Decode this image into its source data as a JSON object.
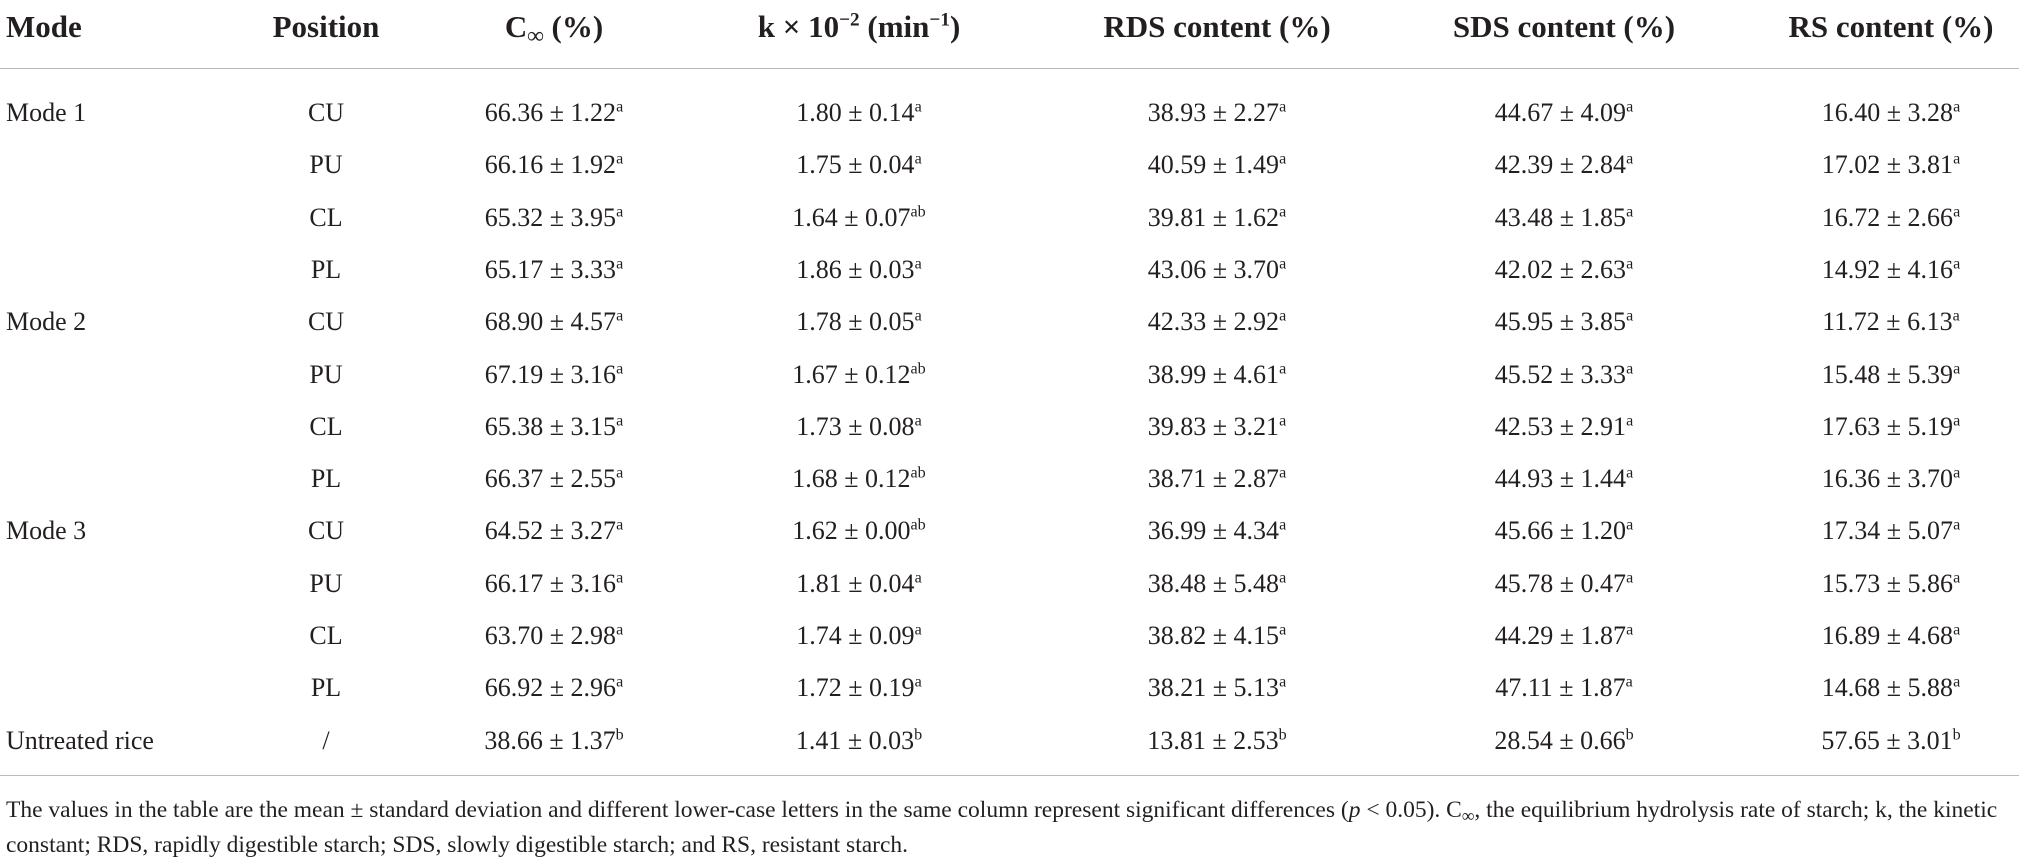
{
  "table": {
    "header": [
      [
        {
          "text": "Mode",
          "style": "normal"
        }
      ],
      [
        {
          "text": "Position",
          "style": "normal"
        }
      ],
      [
        {
          "text": "C",
          "style": "normal"
        },
        {
          "text": "∞",
          "style": "sub"
        },
        {
          "text": " (%)",
          "style": "normal"
        }
      ],
      [
        {
          "text": "k × 10",
          "style": "normal"
        },
        {
          "text": "−2",
          "style": "sup"
        },
        {
          "text": " (min",
          "style": "normal"
        },
        {
          "text": "−1",
          "style": "sup"
        },
        {
          "text": ")",
          "style": "normal"
        }
      ],
      [
        {
          "text": "RDS content (%)",
          "style": "normal"
        }
      ],
      [
        {
          "text": "SDS content (%)",
          "style": "normal"
        }
      ],
      [
        {
          "text": "RS content (%)",
          "style": "normal"
        }
      ]
    ],
    "rows": [
      [
        "Mode 1",
        "CU",
        {
          "value": "66.36 ± 1.22",
          "sup": "a"
        },
        {
          "value": "1.80 ± 0.14",
          "sup": "a"
        },
        {
          "value": "38.93 ± 2.27",
          "sup": "a"
        },
        {
          "value": "44.67 ± 4.09",
          "sup": "a"
        },
        {
          "value": "16.40 ± 3.28",
          "sup": "a"
        }
      ],
      [
        null,
        "PU",
        {
          "value": "66.16 ± 1.92",
          "sup": "a"
        },
        {
          "value": "1.75 ± 0.04",
          "sup": "a"
        },
        {
          "value": "40.59 ± 1.49",
          "sup": "a"
        },
        {
          "value": "42.39 ± 2.84",
          "sup": "a"
        },
        {
          "value": "17.02 ± 3.81",
          "sup": "a"
        }
      ],
      [
        null,
        "CL",
        {
          "value": "65.32 ± 3.95",
          "sup": "a"
        },
        {
          "value": "1.64 ± 0.07",
          "sup": "ab"
        },
        {
          "value": "39.81 ± 1.62",
          "sup": "a"
        },
        {
          "value": "43.48 ± 1.85",
          "sup": "a"
        },
        {
          "value": "16.72 ± 2.66",
          "sup": "a"
        }
      ],
      [
        null,
        "PL",
        {
          "value": "65.17 ± 3.33",
          "sup": "a"
        },
        {
          "value": "1.86 ± 0.03",
          "sup": "a"
        },
        {
          "value": "43.06 ± 3.70",
          "sup": "a"
        },
        {
          "value": "42.02 ± 2.63",
          "sup": "a"
        },
        {
          "value": "14.92 ± 4.16",
          "sup": "a"
        }
      ],
      [
        "Mode 2",
        "CU",
        {
          "value": "68.90 ± 4.57",
          "sup": "a"
        },
        {
          "value": "1.78 ± 0.05",
          "sup": "a"
        },
        {
          "value": "42.33 ± 2.92",
          "sup": "a"
        },
        {
          "value": "45.95 ± 3.85",
          "sup": "a"
        },
        {
          "value": "11.72 ± 6.13",
          "sup": "a"
        }
      ],
      [
        null,
        "PU",
        {
          "value": "67.19 ± 3.16",
          "sup": "a"
        },
        {
          "value": "1.67 ± 0.12",
          "sup": "ab"
        },
        {
          "value": "38.99 ± 4.61",
          "sup": "a"
        },
        {
          "value": "45.52 ± 3.33",
          "sup": "a"
        },
        {
          "value": "15.48 ± 5.39",
          "sup": "a"
        }
      ],
      [
        null,
        "CL",
        {
          "value": "65.38 ± 3.15",
          "sup": "a"
        },
        {
          "value": "1.73 ± 0.08",
          "sup": "a"
        },
        {
          "value": "39.83 ± 3.21",
          "sup": "a"
        },
        {
          "value": "42.53 ± 2.91",
          "sup": "a"
        },
        {
          "value": "17.63 ± 5.19",
          "sup": "a"
        }
      ],
      [
        null,
        "PL",
        {
          "value": "66.37 ± 2.55",
          "sup": "a"
        },
        {
          "value": "1.68 ± 0.12",
          "sup": "ab"
        },
        {
          "value": "38.71 ± 2.87",
          "sup": "a"
        },
        {
          "value": "44.93 ± 1.44",
          "sup": "a"
        },
        {
          "value": "16.36 ± 3.70",
          "sup": "a"
        }
      ],
      [
        "Mode 3",
        "CU",
        {
          "value": "64.52 ± 3.27",
          "sup": "a"
        },
        {
          "value": "1.62 ± 0.00",
          "sup": "ab"
        },
        {
          "value": "36.99 ± 4.34",
          "sup": "a"
        },
        {
          "value": "45.66 ± 1.20",
          "sup": "a"
        },
        {
          "value": "17.34 ± 5.07",
          "sup": "a"
        }
      ],
      [
        null,
        "PU",
        {
          "value": "66.17 ± 3.16",
          "sup": "a"
        },
        {
          "value": "1.81 ± 0.04",
          "sup": "a"
        },
        {
          "value": "38.48 ± 5.48",
          "sup": "a"
        },
        {
          "value": "45.78 ± 0.47",
          "sup": "a"
        },
        {
          "value": "15.73 ± 5.86",
          "sup": "a"
        }
      ],
      [
        null,
        "CL",
        {
          "value": "63.70 ± 2.98",
          "sup": "a"
        },
        {
          "value": "1.74 ± 0.09",
          "sup": "a"
        },
        {
          "value": "38.82 ± 4.15",
          "sup": "a"
        },
        {
          "value": "44.29 ± 1.87",
          "sup": "a"
        },
        {
          "value": "16.89 ± 4.68",
          "sup": "a"
        }
      ],
      [
        null,
        "PL",
        {
          "value": "66.92 ± 2.96",
          "sup": "a"
        },
        {
          "value": "1.72 ± 0.19",
          "sup": "a"
        },
        {
          "value": "38.21 ± 5.13",
          "sup": "a"
        },
        {
          "value": "47.11 ± 1.87",
          "sup": "a"
        },
        {
          "value": "14.68 ± 5.88",
          "sup": "a"
        }
      ],
      [
        "Untreated rice",
        "/",
        {
          "value": "38.66 ± 1.37",
          "sup": "b"
        },
        {
          "value": "1.41 ± 0.03",
          "sup": "b"
        },
        {
          "value": "13.81 ± 2.53",
          "sup": "b"
        },
        {
          "value": "28.54 ± 0.66",
          "sup": "b"
        },
        {
          "value": "57.65 ± 3.01",
          "sup": "b"
        }
      ]
    ],
    "footnote": [
      {
        "text": "The values in the table are the mean ± standard deviation and different lower-case letters in the same column represent significant differences (",
        "style": "normal"
      },
      {
        "text": "p",
        "style": "italic"
      },
      {
        "text": " < 0.05). C",
        "style": "normal"
      },
      {
        "text": "∞",
        "style": "sub"
      },
      {
        "text": ", the equilibrium hydrolysis rate of starch; k, the kinetic constant; RDS, rapidly digestible starch; SDS, slowly digestible starch; and RS, resistant starch.",
        "style": "normal"
      }
    ]
  }
}
